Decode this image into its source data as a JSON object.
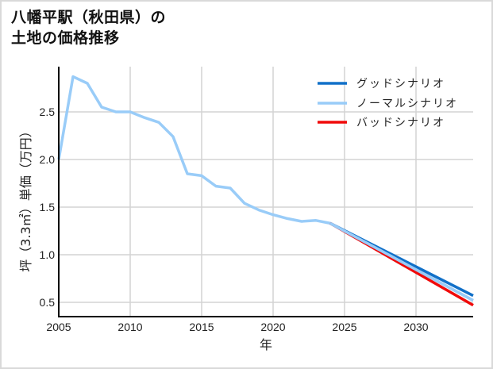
{
  "title": "八幡平駅（秋田県）の\n土地の価格推移",
  "colors": {
    "good": "#1170c8",
    "normal": "#99ccf8",
    "bad": "#f00a0a",
    "grid": "#d3d3d3",
    "axis": "#000000"
  },
  "chart_data": {
    "type": "line",
    "title": "八幡平駅（秋田県）の土地の価格推移",
    "xlabel": "年",
    "ylabel": "坪（3.3㎡）単価（万円）",
    "xlim": [
      2005,
      2034
    ],
    "ylim": [
      0.35,
      2.98
    ],
    "xticks": [
      2005,
      2010,
      2015,
      2020,
      2025,
      2030
    ],
    "yticks": [
      0.5,
      1.0,
      1.5,
      2.0,
      2.5
    ],
    "ytick_labels": [
      "0.5",
      "1.0",
      "1.5",
      "2.0",
      "2.5"
    ],
    "grid": true,
    "legend_position": "upper right",
    "series": [
      {
        "name": "グッドシナリオ",
        "color": "#1170c8",
        "x": [
          2024,
          2034
        ],
        "values": [
          1.33,
          0.57
        ]
      },
      {
        "name": "ノーマルシナリオ",
        "color": "#99ccf8",
        "x": [
          2005,
          2006,
          2007,
          2008,
          2009,
          2010,
          2011,
          2012,
          2013,
          2014,
          2015,
          2016,
          2017,
          2018,
          2019,
          2020,
          2021,
          2022,
          2023,
          2024,
          2034
        ],
        "values": [
          2.0,
          2.87,
          2.8,
          2.55,
          2.5,
          2.5,
          2.44,
          2.39,
          2.24,
          1.85,
          1.83,
          1.72,
          1.7,
          1.54,
          1.47,
          1.42,
          1.38,
          1.35,
          1.36,
          1.33,
          0.52
        ]
      },
      {
        "name": "バッドシナリオ",
        "color": "#f00a0a",
        "x": [
          2024,
          2034
        ],
        "values": [
          1.33,
          0.47
        ]
      }
    ]
  }
}
